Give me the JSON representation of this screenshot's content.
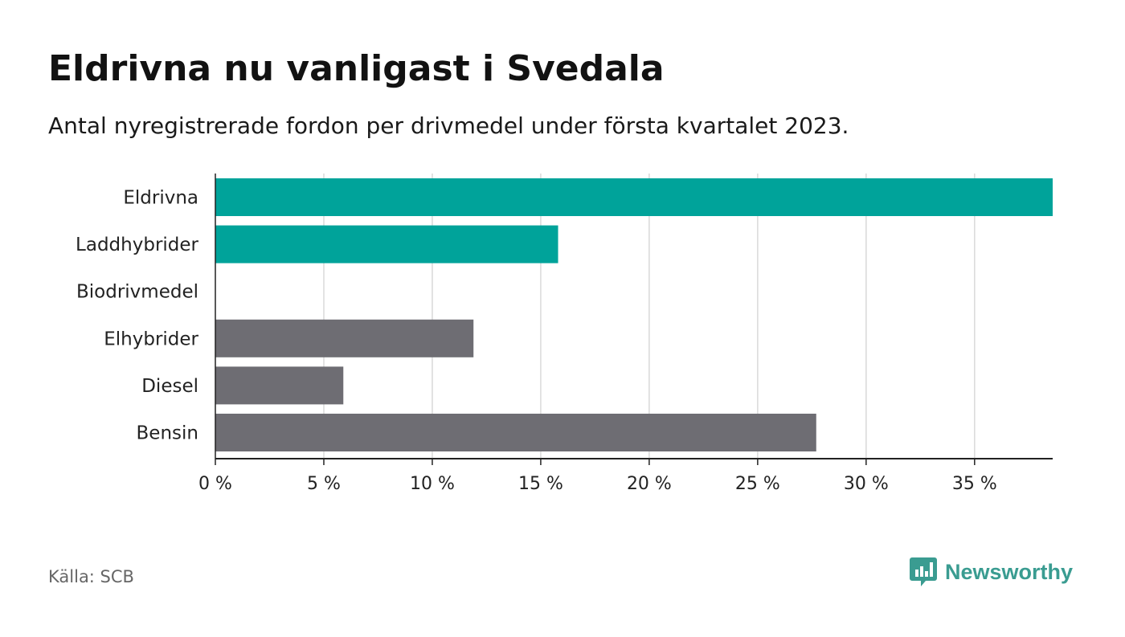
{
  "title": "Eldrivna nu vanligast i Svedala",
  "subtitle": "Antal nyregistrerade fordon per drivmedel under första kvartalet 2023.",
  "source": "Källa: SCB",
  "brand": {
    "name": "Newsworthy",
    "icon": "newsworthy-logo-icon",
    "color": "#3a9c91"
  },
  "colors": {
    "highlight": "#00a39a",
    "default": "#6e6d73",
    "grid": "#d9d9d9",
    "axis": "#222222"
  },
  "chart_data": {
    "type": "bar",
    "orientation": "horizontal",
    "categories": [
      "Eldrivna",
      "Laddhybrider",
      "Biodrivmedel",
      "Elhybrider",
      "Diesel",
      "Bensin"
    ],
    "values": [
      38.6,
      15.8,
      0,
      11.9,
      5.9,
      27.7
    ],
    "highlighted": [
      true,
      true,
      false,
      false,
      false,
      false
    ],
    "xlim": [
      0,
      38.6
    ],
    "xticks": [
      0,
      5,
      10,
      15,
      20,
      25,
      30,
      35
    ],
    "tick_suffix": " %",
    "xlabel": "",
    "ylabel": "",
    "grid": true,
    "legend": "none"
  }
}
